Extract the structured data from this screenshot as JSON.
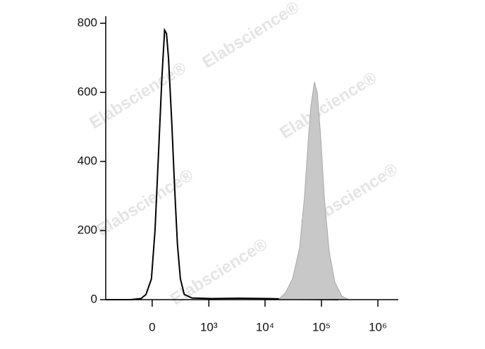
{
  "chart_data": {
    "type": "histogram",
    "watermark": "Elabscience®",
    "xscale": "biexponential",
    "xlim": [
      -650,
      2300000
    ],
    "xticks": [
      0,
      {
        "value": 1000,
        "label": "10³"
      },
      {
        "value": 10000,
        "label": "10⁴"
      },
      {
        "value": 100000,
        "label": "10⁵"
      },
      {
        "value": 1000000,
        "label": "10⁶"
      }
    ],
    "ylim": [
      0,
      800
    ],
    "yticks": [
      0,
      200,
      400,
      600,
      800
    ],
    "grid": false,
    "series": [
      {
        "color": "#000000",
        "fill": false,
        "x": [
          -650,
          -203,
          -95,
          -51,
          -6,
          23,
          52,
          81,
          106,
          124,
          143,
          176,
          211,
          245,
          285,
          344,
          488,
          1114,
          3540,
          11200,
          35400,
          200000
        ],
        "values": [
          0,
          0,
          3,
          15,
          60,
          200,
          420,
          640,
          780,
          770,
          700,
          520,
          320,
          160,
          60,
          15,
          5,
          3,
          4,
          3,
          1,
          0
        ]
      },
      {
        "color": "#c8c8c8",
        "fill": true,
        "x": [
          17300,
          23000,
          30700,
          41000,
          50100,
          57800,
          64900,
          75000,
          84200,
          97200,
          112000,
          137000,
          173000,
          230000,
          307000
        ],
        "values": [
          0,
          20,
          60,
          150,
          300,
          450,
          560,
          630,
          600,
          470,
          300,
          140,
          50,
          10,
          0
        ]
      }
    ]
  }
}
